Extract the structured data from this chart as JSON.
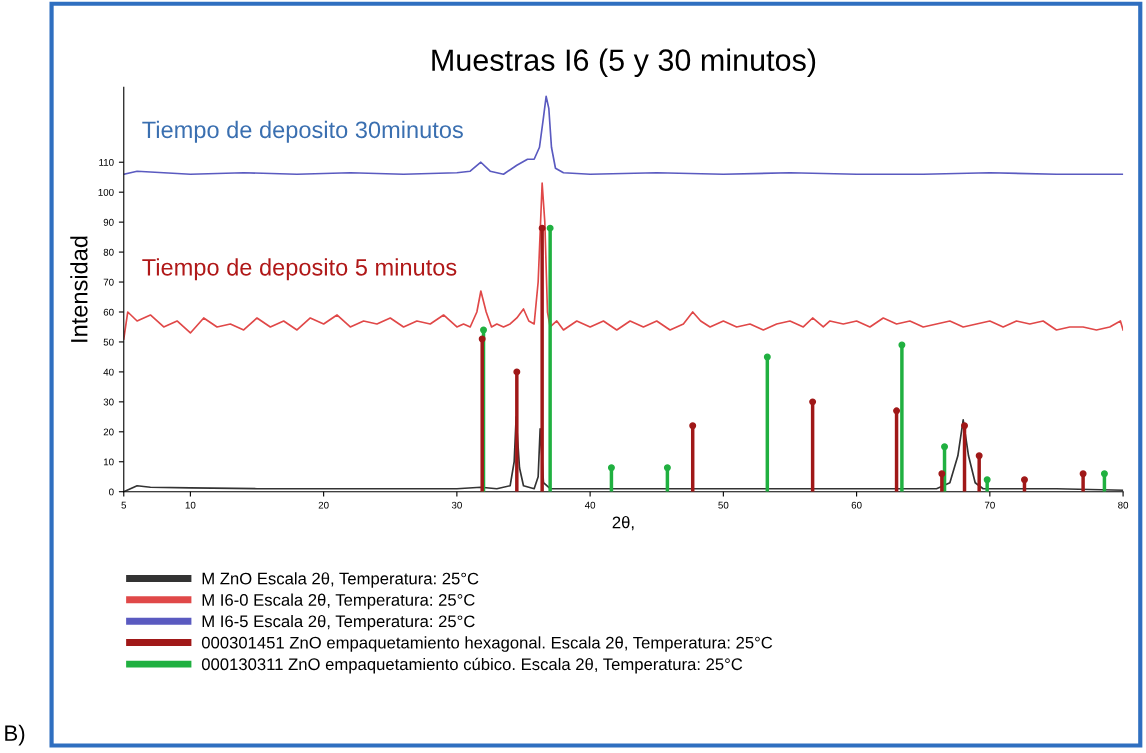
{
  "chart_data": {
    "type": "line",
    "title": "Muestras I6 (5 y 30 minutos)",
    "xlabel": "2θ,",
    "ylabel": "Intensidad",
    "xlim": [
      5,
      80
    ],
    "xticks": [
      5,
      10,
      20,
      30,
      40,
      50,
      60,
      70,
      80
    ],
    "ylim": [
      0,
      135
    ],
    "yticks": [
      0,
      10,
      20,
      30,
      40,
      50,
      60,
      70,
      80,
      90,
      100,
      110
    ],
    "grid": false,
    "legend": "bottom",
    "marker": "none",
    "line_style": "solid",
    "series": [
      {
        "name": "M ZnO Escala 2θ, Temperatura: 25°C",
        "color": "#333333",
        "x": [
          5,
          5.5,
          6,
          7,
          10,
          15,
          20,
          25,
          30,
          31.8,
          33,
          34,
          34.3,
          34.45,
          34.7,
          35,
          35.8,
          36.1,
          36.25,
          36.5,
          37,
          40,
          45,
          50,
          55,
          60,
          66,
          67,
          67.6,
          68,
          68.4,
          68.9,
          69.5,
          75,
          80
        ],
        "values": [
          0,
          1,
          2,
          1.5,
          1.3,
          1,
          1,
          1,
          1,
          1.5,
          1,
          2,
          10,
          25,
          8,
          2,
          1,
          5,
          21,
          3,
          1,
          1,
          1,
          1,
          1,
          1,
          1,
          3,
          12,
          24,
          12,
          3,
          1,
          1,
          0.5
        ]
      },
      {
        "name": "M I6-0 Escala 2θ, Temperatura: 25°C",
        "color": "#e04848",
        "x": [
          5,
          5.3,
          6,
          7,
          8,
          9,
          10,
          11,
          12,
          13,
          14,
          15,
          16,
          17,
          18,
          19,
          20,
          21,
          22,
          23,
          24,
          25,
          26,
          27,
          28,
          29,
          29.5,
          30,
          30.5,
          31,
          31.5,
          31.8,
          32.2,
          32.6,
          33,
          33.5,
          34,
          34.5,
          35,
          35.4,
          35.8,
          36.1,
          36.4,
          36.6,
          36.8,
          37,
          37.5,
          38,
          39,
          40,
          41,
          42,
          43,
          44,
          45,
          46,
          47,
          47.7,
          48.3,
          49,
          50,
          51,
          52,
          53,
          54,
          55,
          56,
          56.7,
          57.5,
          58,
          59,
          60,
          61,
          62,
          63,
          64,
          65,
          66,
          67,
          68,
          69,
          70,
          71,
          72,
          73,
          74,
          75,
          76,
          77,
          78,
          79,
          79.8,
          80
        ],
        "values": [
          51,
          60,
          57,
          59,
          55,
          57,
          53,
          58,
          55,
          56,
          54,
          58,
          55,
          57,
          54,
          58,
          56,
          59,
          55,
          57,
          56,
          58,
          55,
          57,
          56,
          59,
          57,
          55,
          56,
          55,
          60,
          67,
          60,
          55,
          56,
          55,
          56,
          58,
          61,
          57,
          56,
          70,
          103,
          90,
          60,
          55,
          57,
          54,
          57,
          55,
          57,
          54,
          57,
          55,
          57,
          54,
          56,
          60,
          57,
          55,
          57,
          55,
          56,
          54,
          56,
          57,
          55,
          58,
          55,
          57,
          56,
          57,
          55,
          58,
          56,
          57,
          55,
          56,
          57,
          55,
          56,
          57,
          55,
          57,
          56,
          57,
          54,
          55,
          55,
          54,
          55,
          57,
          54
        ]
      },
      {
        "name": "M I6-5 Escala 2θ, Temperatura: 25°C",
        "color": "#5a5ac0",
        "x": [
          5,
          6,
          8,
          10,
          14,
          18,
          22,
          26,
          30,
          31,
          31.8,
          32.5,
          33.5,
          34.5,
          35.3,
          35.8,
          36.2,
          36.5,
          36.7,
          36.9,
          37.1,
          37.4,
          38,
          40,
          45,
          50,
          55,
          60,
          65,
          70,
          75,
          80
        ],
        "values": [
          106,
          107,
          106.5,
          106,
          106.5,
          106,
          106.5,
          106,
          106.5,
          107,
          110,
          107,
          106,
          109,
          111,
          111,
          115,
          125,
          132,
          128,
          115,
          108,
          106.5,
          106,
          106.5,
          106,
          106.5,
          106,
          106,
          106.5,
          106,
          106
        ]
      },
      {
        "name": "000301451 ZnO empaquetamiento hexagonal. Escala 2θ, Temperatura: 25°C",
        "type": "lollipop",
        "color": "#a01818",
        "x": [
          31.9,
          34.5,
          36.4,
          47.7,
          56.7,
          63.0,
          66.4,
          68.1,
          69.2,
          72.6,
          77.0
        ],
        "values": [
          51,
          40,
          88,
          22,
          30,
          27,
          6,
          22,
          12,
          4,
          6
        ]
      },
      {
        "name": "000130311 ZnO empaquetamiento cúbico. Escala 2θ, Temperatura: 25°C",
        "type": "lollipop",
        "color": "#20b040",
        "x": [
          32.0,
          37.0,
          41.6,
          45.8,
          53.3,
          63.4,
          66.6,
          69.8,
          78.6
        ],
        "values": [
          54,
          88,
          8,
          8,
          45,
          49,
          15,
          4,
          6
        ]
      }
    ],
    "annotations": [
      "Tiempo de deposito 30minutos",
      "Tiempo de deposito 5 minutos",
      "B)"
    ]
  }
}
